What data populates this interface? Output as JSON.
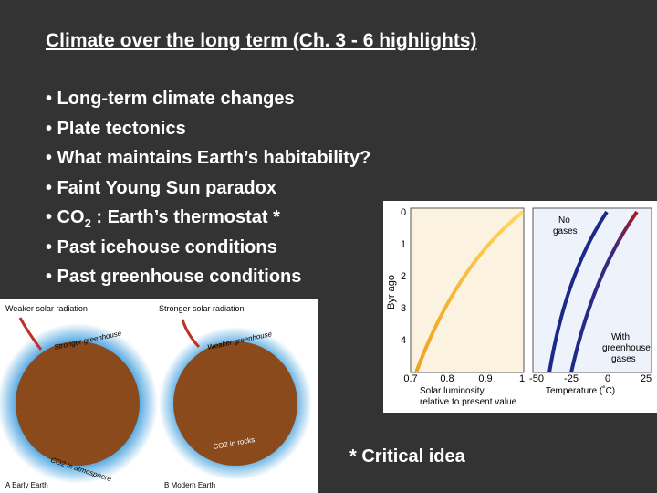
{
  "slide": {
    "title": "Climate over the long term (Ch. 3 - 6 highlights)",
    "bullets": [
      "• Long-term climate changes",
      "• Plate tectonics",
      "• What maintains Earth’s habitability?",
      "• Faint Young Sun paradox",
      {
        "text": "• CO",
        "sub": "2",
        "rest": " : Earth’s thermostat *"
      },
      "• Past icehouse conditions",
      "• Past greenhouse conditions"
    ],
    "note": "* Critical idea"
  },
  "left_figure": {
    "panels": [
      {
        "radiation": "Weaker solar radiation",
        "greenhouse": "Stronger greenhouse",
        "carbon": "CO2 in atmosphere",
        "caption": "A  Early Earth"
      },
      {
        "radiation": "Stronger solar radiation",
        "greenhouse": "Weaker greenhouse",
        "carbon": "CO2 in rocks",
        "caption": "B  Modern Earth"
      }
    ]
  },
  "right_figure": {
    "y_axis_label": "Byr ago",
    "y_ticks": [
      "0",
      "1",
      "2",
      "3",
      "4"
    ],
    "luminosity_ticks": [
      "0.7",
      "0.8",
      "0.9",
      "1"
    ],
    "luminosity_label": [
      "Solar luminosity",
      "relative to present value"
    ],
    "temperature_ticks": [
      "-50",
      "-25",
      "0",
      "25"
    ],
    "temperature_label": "Temperature (˚C)",
    "no_gases": [
      "No",
      "gases"
    ],
    "with_gases": [
      "With",
      "greenhouse",
      "gases"
    ]
  }
}
